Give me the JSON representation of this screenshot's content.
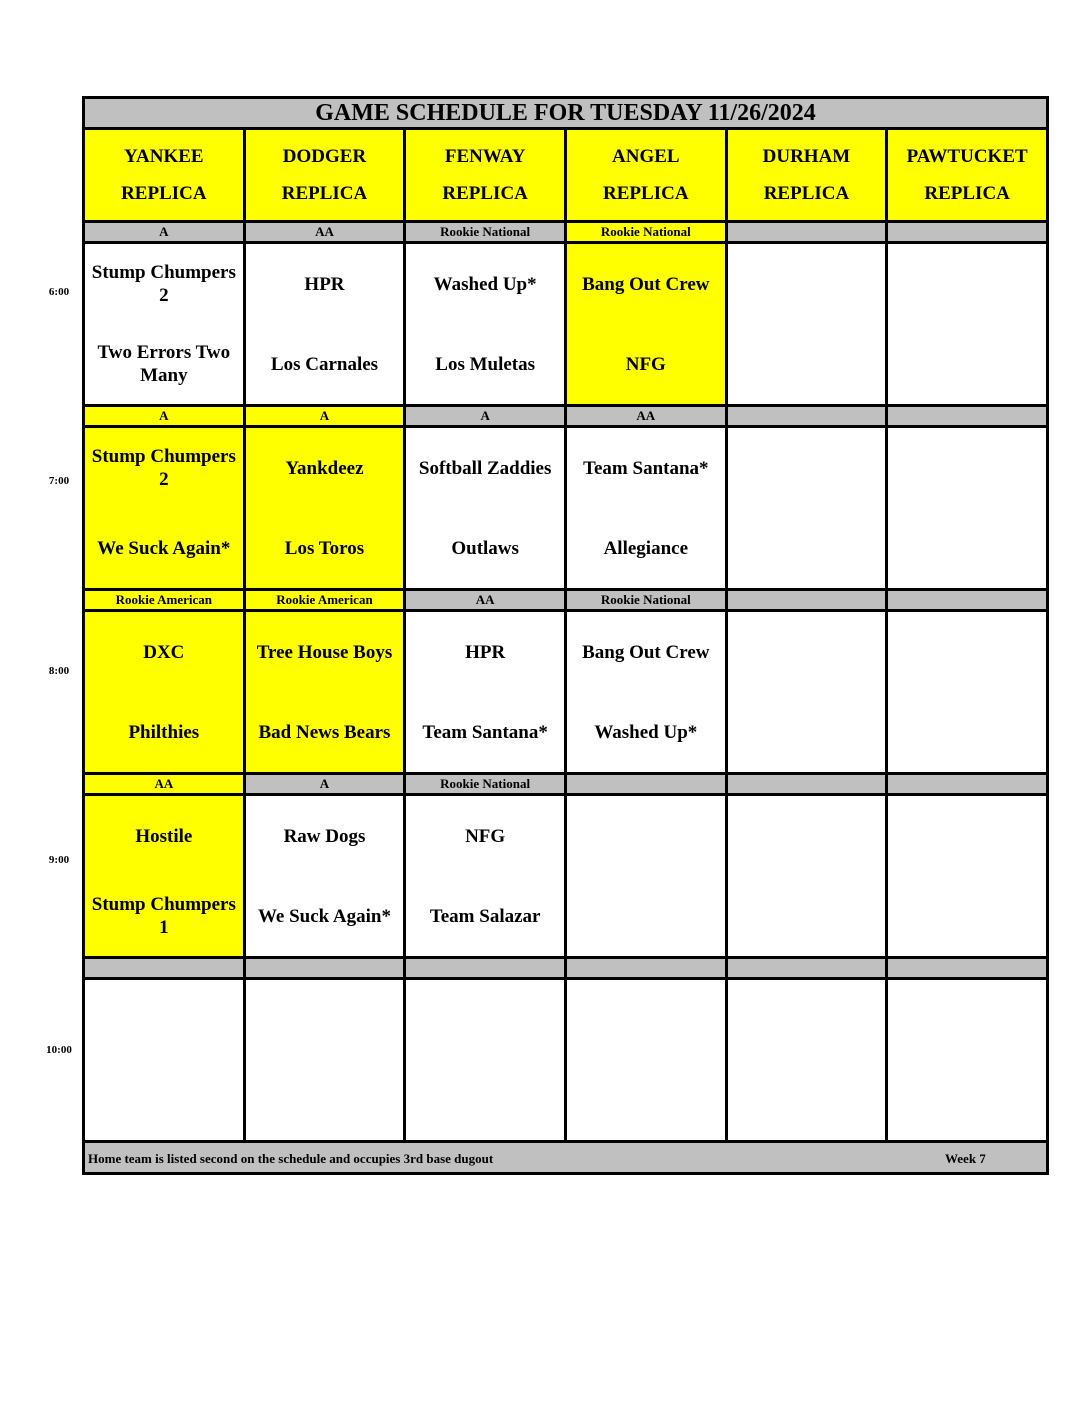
{
  "title": "GAME SCHEDULE FOR TUESDAY 11/26/2024",
  "fields": [
    {
      "line1": "YANKEE",
      "line2": "REPLICA"
    },
    {
      "line1": "DODGER",
      "line2": "REPLICA"
    },
    {
      "line1": "FENWAY",
      "line2": "REPLICA"
    },
    {
      "line1": "ANGEL",
      "line2": "REPLICA"
    },
    {
      "line1": "DURHAM",
      "line2": "REPLICA"
    },
    {
      "line1": "PAWTUCKET",
      "line2": "REPLICA"
    }
  ],
  "colors": {
    "highlight": "#ffff00",
    "header_gray": "#c0c0c0"
  },
  "slots": [
    {
      "time": "6:00",
      "divisions": [
        {
          "label": "A",
          "hl": false
        },
        {
          "label": "AA",
          "hl": false
        },
        {
          "label": "Rookie National",
          "hl": false
        },
        {
          "label": "Rookie National",
          "hl": true
        },
        {
          "label": "",
          "hl": false
        },
        {
          "label": "",
          "hl": false
        }
      ],
      "games": [
        {
          "away": "Stump Chumpers 2",
          "home": "Two Errors Two Many",
          "hl": false
        },
        {
          "away": "HPR",
          "home": "Los Carnales",
          "hl": false
        },
        {
          "away": "Washed Up*",
          "home": "Los Muletas",
          "hl": false
        },
        {
          "away": "Bang Out Crew",
          "home": "NFG",
          "hl": true
        },
        {
          "away": "",
          "home": "",
          "hl": false
        },
        {
          "away": "",
          "home": "",
          "hl": false
        }
      ]
    },
    {
      "time": "7:00",
      "divisions": [
        {
          "label": "A",
          "hl": true
        },
        {
          "label": "A",
          "hl": true
        },
        {
          "label": "A",
          "hl": false
        },
        {
          "label": "AA",
          "hl": false
        },
        {
          "label": "",
          "hl": false
        },
        {
          "label": "",
          "hl": false
        }
      ],
      "games": [
        {
          "away": "Stump Chumpers 2",
          "home": "We Suck Again*",
          "hl": true
        },
        {
          "away": "Yankdeez",
          "home": "Los Toros",
          "hl": true
        },
        {
          "away": "Softball Zaddies",
          "home": "Outlaws",
          "hl": false
        },
        {
          "away": "Team Santana*",
          "home": "Allegiance",
          "hl": false
        },
        {
          "away": "",
          "home": "",
          "hl": false
        },
        {
          "away": "",
          "home": "",
          "hl": false
        }
      ]
    },
    {
      "time": "8:00",
      "divisions": [
        {
          "label": "Rookie American",
          "hl": true
        },
        {
          "label": "Rookie American",
          "hl": true
        },
        {
          "label": "AA",
          "hl": false
        },
        {
          "label": "Rookie National",
          "hl": false
        },
        {
          "label": "",
          "hl": false
        },
        {
          "label": "",
          "hl": false
        }
      ],
      "games": [
        {
          "away": "DXC",
          "home": "Philthies",
          "hl": true
        },
        {
          "away": "Tree House Boys",
          "home": "Bad News Bears",
          "hl": true
        },
        {
          "away": "HPR",
          "home": "Team Santana*",
          "hl": false
        },
        {
          "away": "Bang Out Crew",
          "home": "Washed Up*",
          "hl": false
        },
        {
          "away": "",
          "home": "",
          "hl": false
        },
        {
          "away": "",
          "home": "",
          "hl": false
        }
      ]
    },
    {
      "time": "9:00",
      "divisions": [
        {
          "label": "AA",
          "hl": true
        },
        {
          "label": "A",
          "hl": false
        },
        {
          "label": "Rookie National",
          "hl": false
        },
        {
          "label": "",
          "hl": false
        },
        {
          "label": "",
          "hl": false
        },
        {
          "label": "",
          "hl": false
        }
      ],
      "games": [
        {
          "away": "Hostile",
          "home": "Stump Chumpers 1",
          "hl": true
        },
        {
          "away": "Raw Dogs",
          "home": "We Suck Again*",
          "hl": false
        },
        {
          "away": "NFG",
          "home": "Team Salazar",
          "hl": false
        },
        {
          "away": "",
          "home": "",
          "hl": false
        },
        {
          "away": "",
          "home": "",
          "hl": false
        },
        {
          "away": "",
          "home": "",
          "hl": false
        }
      ]
    },
    {
      "time": "10:00",
      "divisions": [
        {
          "label": "",
          "hl": false
        },
        {
          "label": "",
          "hl": false
        },
        {
          "label": "",
          "hl": false
        },
        {
          "label": "",
          "hl": false
        },
        {
          "label": "",
          "hl": false
        },
        {
          "label": "",
          "hl": false
        }
      ],
      "games": [
        {
          "away": "",
          "home": "",
          "hl": false
        },
        {
          "away": "",
          "home": "",
          "hl": false
        },
        {
          "away": "",
          "home": "",
          "hl": false
        },
        {
          "away": "",
          "home": "",
          "hl": false
        },
        {
          "away": "",
          "home": "",
          "hl": false
        },
        {
          "away": "",
          "home": "",
          "hl": false
        }
      ]
    }
  ],
  "footer": {
    "note": "Home team is listed second on the schedule and occupies 3rd base dugout",
    "week": "Week 7"
  }
}
